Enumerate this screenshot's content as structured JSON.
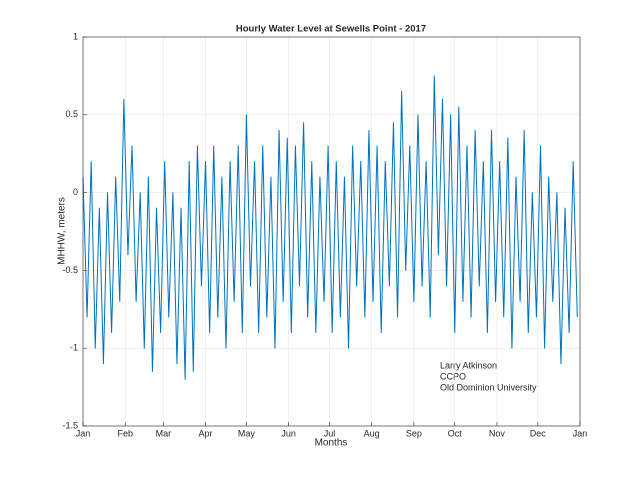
{
  "chart_data": {
    "type": "line",
    "title": "Hourly Water Level at Sewells Point - 2017",
    "x_label": "Months",
    "y_label": "MHHW, meters",
    "annotation": [
      "Larry Atkinson",
      "CCPO",
      "Old Dominion University"
    ],
    "x": [
      0,
      3,
      6,
      9,
      12,
      15,
      18,
      21,
      24,
      27,
      30,
      33,
      36,
      39,
      42,
      45,
      48,
      51,
      54,
      57,
      60,
      63,
      66,
      69,
      72,
      75,
      78,
      81,
      84,
      87,
      90,
      93,
      96,
      99,
      102,
      105,
      108,
      111,
      114,
      117,
      120,
      123,
      126,
      129,
      132,
      135,
      138,
      141,
      144,
      147,
      150,
      153,
      156,
      159,
      162,
      165,
      168,
      171,
      174,
      177,
      180,
      183,
      186,
      189,
      192,
      195,
      198,
      201,
      204,
      207,
      210,
      213,
      216,
      219,
      222,
      225,
      228,
      231,
      234,
      237,
      240,
      243,
      246,
      249,
      252,
      255,
      258,
      261,
      264,
      267,
      270,
      273,
      276,
      279,
      282,
      285,
      288,
      291,
      294,
      297,
      300,
      303,
      306,
      309,
      312,
      315,
      318,
      321,
      324,
      327,
      330,
      333,
      336,
      339,
      342,
      345,
      348,
      351,
      354,
      357,
      360,
      363
    ],
    "series": [
      {
        "name": "Water level",
        "color": "#0072bd",
        "values": [
          0.1,
          -0.8,
          0.2,
          -1.0,
          -0.1,
          -1.1,
          0.0,
          -0.9,
          0.1,
          -0.7,
          0.6,
          -0.4,
          0.3,
          -0.7,
          0.0,
          -1.0,
          0.1,
          -1.15,
          -0.1,
          -0.9,
          0.2,
          -0.8,
          0.0,
          -1.1,
          -0.1,
          -1.2,
          0.2,
          -1.15,
          0.3,
          -0.6,
          0.2,
          -0.9,
          0.3,
          -0.8,
          0.1,
          -1.0,
          0.2,
          -0.7,
          0.3,
          -0.9,
          0.5,
          -0.6,
          0.2,
          -0.9,
          0.3,
          -0.8,
          0.1,
          -1.0,
          0.4,
          -0.7,
          0.35,
          -0.9,
          0.3,
          -0.6,
          0.45,
          -0.8,
          0.2,
          -0.9,
          0.1,
          -0.7,
          0.3,
          -0.9,
          0.2,
          -0.8,
          0.1,
          -1.0,
          0.3,
          -0.6,
          0.2,
          -0.8,
          0.4,
          -0.7,
          0.3,
          -0.9,
          0.2,
          -0.6,
          0.45,
          -0.8,
          0.65,
          -0.5,
          0.3,
          -0.7,
          0.5,
          -0.6,
          0.2,
          -0.8,
          0.75,
          -0.4,
          0.6,
          -0.6,
          0.5,
          -0.9,
          0.55,
          -0.7,
          0.3,
          -0.8,
          0.4,
          -0.6,
          0.2,
          -0.9,
          0.4,
          -0.7,
          0.2,
          -0.8,
          0.35,
          -1.0,
          0.1,
          -0.7,
          0.4,
          -0.9,
          0.0,
          -0.8,
          0.3,
          -1.0,
          0.1,
          -0.7,
          0.0,
          -1.1,
          -0.1,
          -0.9,
          0.2,
          -0.8
        ]
      }
    ],
    "xlim": [
      0,
      365
    ],
    "xticks": [
      {
        "value": 0,
        "label": "Jan"
      },
      {
        "value": 31,
        "label": "Feb"
      },
      {
        "value": 59,
        "label": "Mar"
      },
      {
        "value": 90,
        "label": "Apr"
      },
      {
        "value": 120,
        "label": "May"
      },
      {
        "value": 151,
        "label": "Jun"
      },
      {
        "value": 181,
        "label": "Jul"
      },
      {
        "value": 212,
        "label": "Aug"
      },
      {
        "value": 243,
        "label": "Sep"
      },
      {
        "value": 273,
        "label": "Oct"
      },
      {
        "value": 304,
        "label": "Nov"
      },
      {
        "value": 334,
        "label": "Dec"
      },
      {
        "value": 365,
        "label": "Jan"
      }
    ],
    "ylim": [
      -1.5,
      1
    ],
    "yticks": [
      -1.5,
      -1,
      -0.5,
      0,
      0.5,
      1
    ],
    "grid": true
  }
}
